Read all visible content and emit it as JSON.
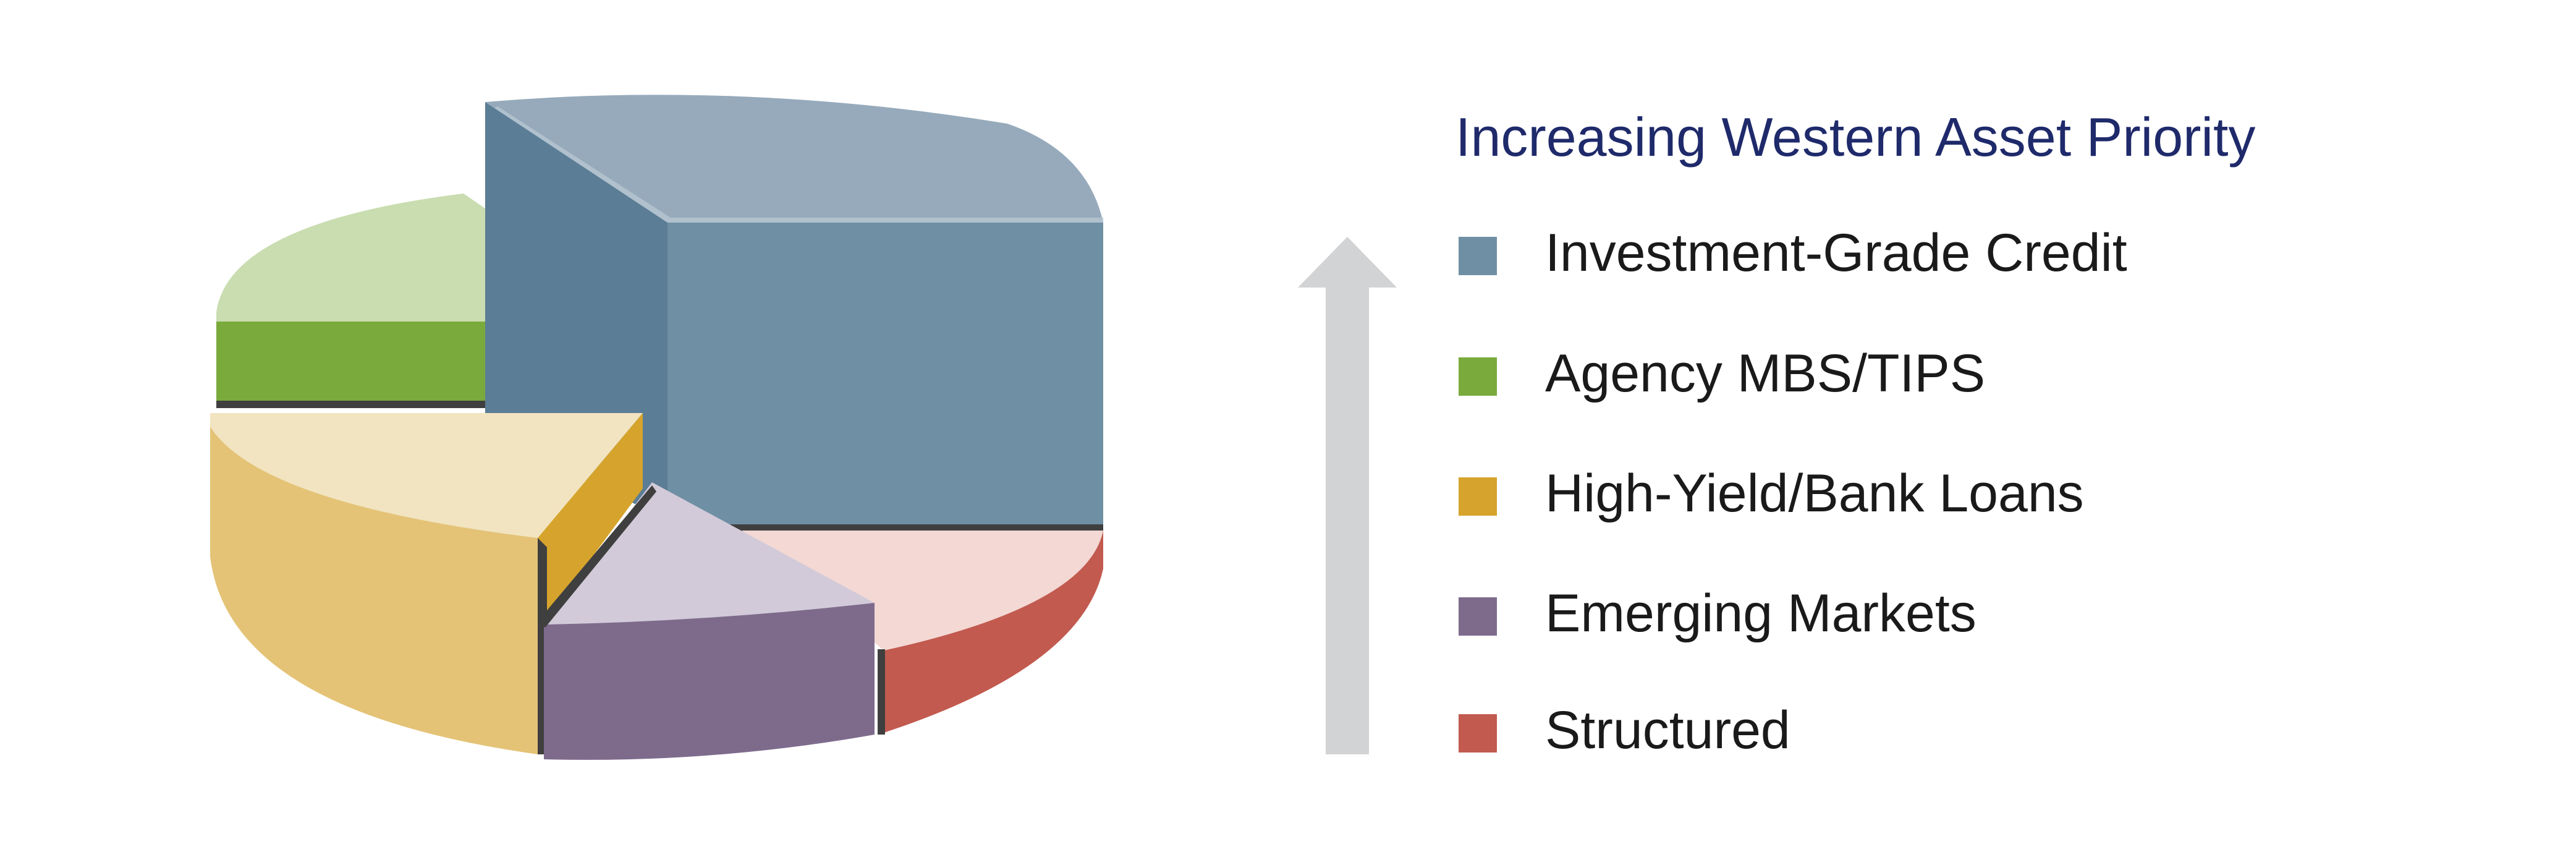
{
  "chart_data": {
    "type": "pie",
    "style": "3d-exploded",
    "title": "Increasing Western Asset Priority",
    "priority_arrow": "up",
    "legend_placement": "right",
    "categories": [
      "Investment-Grade Credit",
      "Agency MBS/TIPS",
      "High-Yield/Bank Loans",
      "Emerging Markets",
      "Structured"
    ],
    "values": [
      42,
      15,
      18,
      13,
      12
    ],
    "colors": {
      "Investment-Grade Credit": "#6f8fa4",
      "Agency MBS/TIPS": "#7aaa3c",
      "High-Yield/Bank Loans": "#d6a42c",
      "Emerging Markets": "#7e6b8c",
      "Structured": "#c25a4f"
    }
  },
  "colors": {
    "title": "#1f2a6b",
    "legend_text": "#1a1a1a",
    "arrow": "#d2d3d5"
  }
}
